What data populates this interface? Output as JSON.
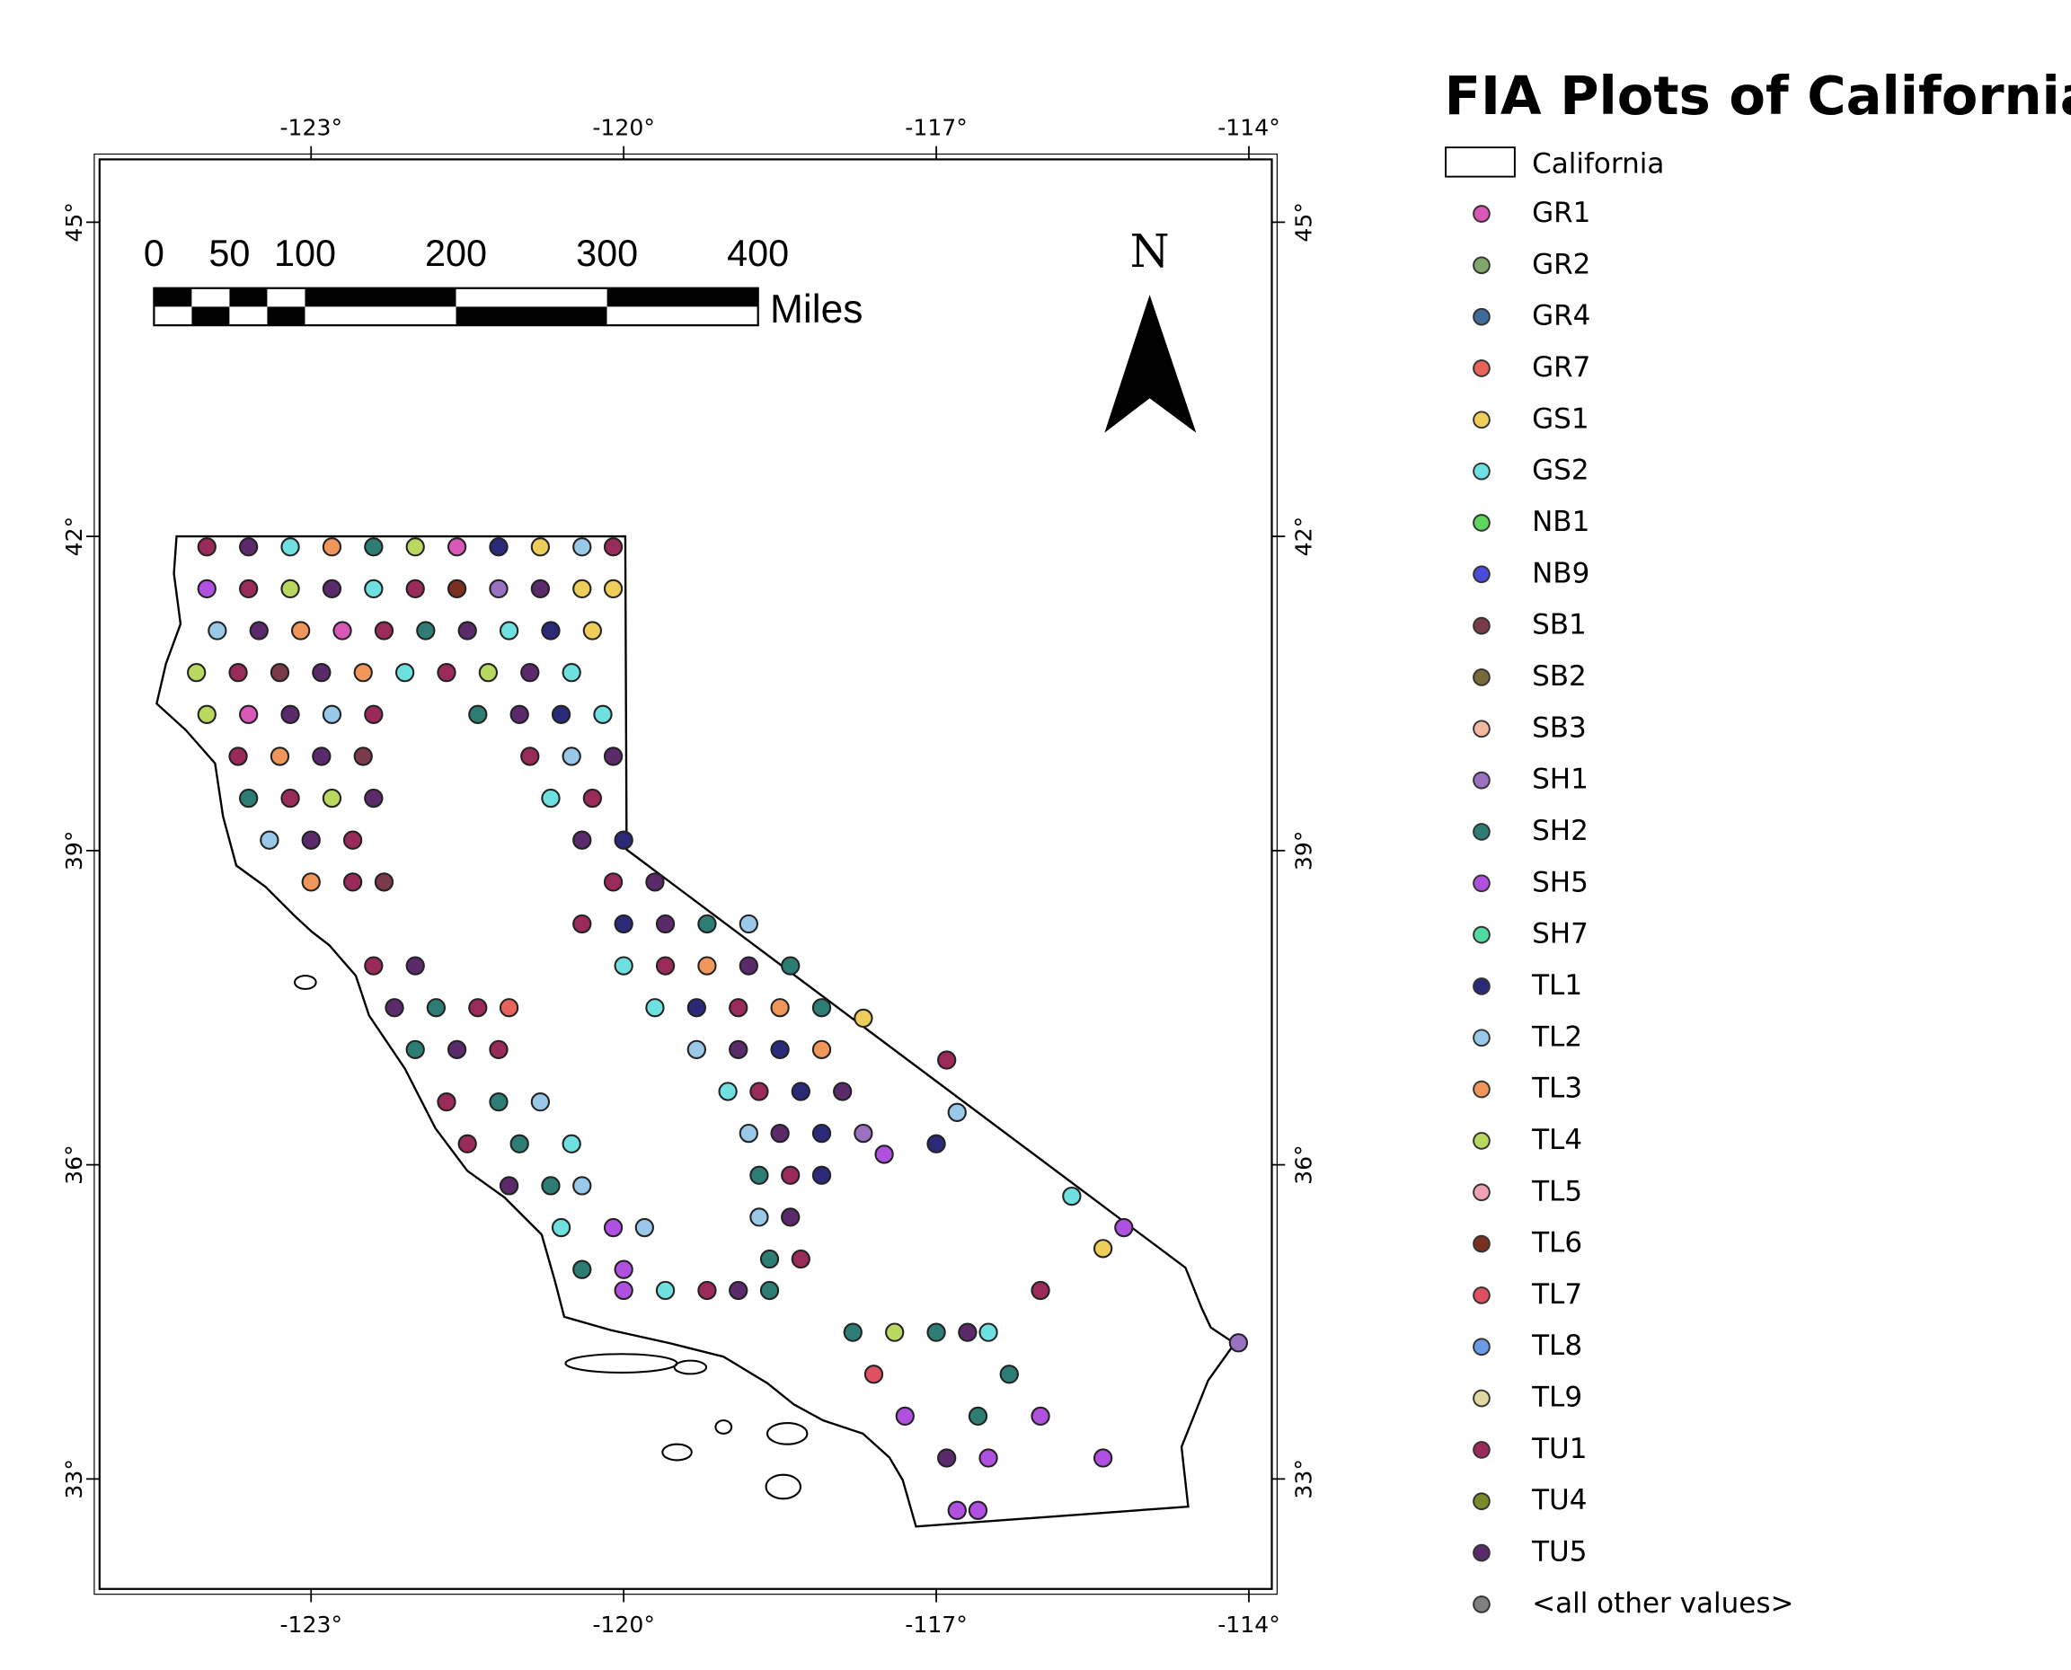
{
  "title": "FIA Plots of California",
  "boundary_label": "California",
  "north_label": "N",
  "scale_bar": {
    "unit": "Miles",
    "ticks": [
      0,
      50,
      100,
      200,
      300,
      400
    ],
    "max": 400
  },
  "xlim": [
    -125.03,
    -113.78
  ],
  "ylim": [
    31.95,
    45.6
  ],
  "xticks": [
    {
      "value": -123,
      "label": "-123°"
    },
    {
      "value": -120,
      "label": "-120°"
    },
    {
      "value": -117,
      "label": "-117°"
    },
    {
      "value": -114,
      "label": "-114°"
    }
  ],
  "yticks": [
    {
      "value": 33,
      "label": "33°"
    },
    {
      "value": 36,
      "label": "36°"
    },
    {
      "value": 39,
      "label": "39°"
    },
    {
      "value": 42,
      "label": "42°"
    },
    {
      "value": 45,
      "label": "45°"
    }
  ],
  "legend": [
    {
      "name": "GR1",
      "color": "#d957b6"
    },
    {
      "name": "GR2",
      "color": "#7fa86a"
    },
    {
      "name": "GR4",
      "color": "#3e6b9a"
    },
    {
      "name": "GR7",
      "color": "#e8645a"
    },
    {
      "name": "GS1",
      "color": "#efcd5a"
    },
    {
      "name": "GS2",
      "color": "#6fe0e0"
    },
    {
      "name": "NB1",
      "color": "#5ed65e"
    },
    {
      "name": "NB9",
      "color": "#4b4bd8"
    },
    {
      "name": "SB1",
      "color": "#7a3a4a"
    },
    {
      "name": "SB2",
      "color": "#7a6a3a"
    },
    {
      "name": "SB3",
      "color": "#f2b9a0"
    },
    {
      "name": "SH1",
      "color": "#9a70c0"
    },
    {
      "name": "SH2",
      "color": "#2e7d74"
    },
    {
      "name": "SH5",
      "color": "#b050e0"
    },
    {
      "name": "SH7",
      "color": "#4fdca0"
    },
    {
      "name": "TL1",
      "color": "#2a2a78"
    },
    {
      "name": "TL2",
      "color": "#9ac8e8"
    },
    {
      "name": "TL3",
      "color": "#f0965a"
    },
    {
      "name": "TL4",
      "color": "#b8d860"
    },
    {
      "name": "TL5",
      "color": "#f0a0b0"
    },
    {
      "name": "TL6",
      "color": "#7a3020"
    },
    {
      "name": "TL7",
      "color": "#e05060"
    },
    {
      "name": "TL8",
      "color": "#6a9ae8"
    },
    {
      "name": "TL9",
      "color": "#e0d8a0"
    },
    {
      "name": "TU1",
      "color": "#9a2a5a"
    },
    {
      "name": "TU4",
      "color": "#7a8a2a"
    },
    {
      "name": "TU5",
      "color": "#5a2a6a"
    },
    {
      "name": "<all other values>",
      "color": "#808080"
    }
  ],
  "plots": [
    [
      "TU1",
      -124.0,
      41.9
    ],
    [
      "TU5",
      -123.6,
      41.9
    ],
    [
      "GS2",
      -123.2,
      41.9
    ],
    [
      "TL3",
      -122.8,
      41.9
    ],
    [
      "SH2",
      -122.4,
      41.9
    ],
    [
      "TL4",
      -122.0,
      41.9
    ],
    [
      "GR1",
      -121.6,
      41.9
    ],
    [
      "TL1",
      -121.2,
      41.9
    ],
    [
      "GS1",
      -120.8,
      41.9
    ],
    [
      "TL2",
      -120.4,
      41.9
    ],
    [
      "TU1",
      -120.1,
      41.9
    ],
    [
      "SH5",
      -124.0,
      41.5
    ],
    [
      "TU1",
      -123.6,
      41.5
    ],
    [
      "TL4",
      -123.2,
      41.5
    ],
    [
      "TU5",
      -122.8,
      41.5
    ],
    [
      "GS2",
      -122.4,
      41.5
    ],
    [
      "TU1",
      -122.0,
      41.5
    ],
    [
      "TL6",
      -121.6,
      41.5
    ],
    [
      "SH1",
      -121.2,
      41.5
    ],
    [
      "TU5",
      -120.8,
      41.5
    ],
    [
      "GS1",
      -120.4,
      41.5
    ],
    [
      "GS1",
      -120.1,
      41.5
    ],
    [
      "TL2",
      -123.9,
      41.1
    ],
    [
      "TU5",
      -123.5,
      41.1
    ],
    [
      "TL3",
      -123.1,
      41.1
    ],
    [
      "GR1",
      -122.7,
      41.1
    ],
    [
      "TU1",
      -122.3,
      41.1
    ],
    [
      "SH2",
      -121.9,
      41.1
    ],
    [
      "TU5",
      -121.5,
      41.1
    ],
    [
      "GS2",
      -121.1,
      41.1
    ],
    [
      "TL1",
      -120.7,
      41.1
    ],
    [
      "GS1",
      -120.3,
      41.1
    ],
    [
      "TL4",
      -124.1,
      40.7
    ],
    [
      "TU1",
      -123.7,
      40.7
    ],
    [
      "SB1",
      -123.3,
      40.7
    ],
    [
      "TU5",
      -122.9,
      40.7
    ],
    [
      "TL3",
      -122.5,
      40.7
    ],
    [
      "GS2",
      -122.1,
      40.7
    ],
    [
      "TU1",
      -121.7,
      40.7
    ],
    [
      "TL4",
      -121.3,
      40.7
    ],
    [
      "TU5",
      -120.9,
      40.7
    ],
    [
      "GS2",
      -120.5,
      40.7
    ],
    [
      "TL4",
      -124.0,
      40.3
    ],
    [
      "GR1",
      -123.6,
      40.3
    ],
    [
      "TU5",
      -123.2,
      40.3
    ],
    [
      "TL2",
      -122.8,
      40.3
    ],
    [
      "TU1",
      -122.4,
      40.3
    ],
    [
      "SH2",
      -121.4,
      40.3
    ],
    [
      "TU5",
      -121.0,
      40.3
    ],
    [
      "TL1",
      -120.6,
      40.3
    ],
    [
      "GS2",
      -120.2,
      40.3
    ],
    [
      "TU1",
      -123.7,
      39.9
    ],
    [
      "TL3",
      -123.3,
      39.9
    ],
    [
      "TU5",
      -122.9,
      39.9
    ],
    [
      "SB1",
      -122.5,
      39.9
    ],
    [
      "TU1",
      -120.9,
      39.9
    ],
    [
      "TL2",
      -120.5,
      39.9
    ],
    [
      "TU5",
      -120.1,
      39.9
    ],
    [
      "SH2",
      -123.6,
      39.5
    ],
    [
      "TU1",
      -123.2,
      39.5
    ],
    [
      "TL4",
      -122.8,
      39.5
    ],
    [
      "TU5",
      -122.4,
      39.5
    ],
    [
      "GS2",
      -120.7,
      39.5
    ],
    [
      "TU1",
      -120.3,
      39.5
    ],
    [
      "TL2",
      -123.4,
      39.1
    ],
    [
      "TU5",
      -123.0,
      39.1
    ],
    [
      "TU1",
      -122.6,
      39.1
    ],
    [
      "TU5",
      -120.4,
      39.1
    ],
    [
      "TL1",
      -120.0,
      39.1
    ],
    [
      "TL3",
      -123.0,
      38.7
    ],
    [
      "TU1",
      -122.6,
      38.7
    ],
    [
      "SB1",
      -122.3,
      38.7
    ],
    [
      "TU1",
      -120.1,
      38.7
    ],
    [
      "TU5",
      -119.7,
      38.7
    ],
    [
      "TU1",
      -120.4,
      38.3
    ],
    [
      "TL1",
      -120.0,
      38.3
    ],
    [
      "TU5",
      -119.6,
      38.3
    ],
    [
      "SH2",
      -119.2,
      38.3
    ],
    [
      "TL2",
      -118.8,
      38.3
    ],
    [
      "GS2",
      -120.0,
      37.9
    ],
    [
      "TU1",
      -119.6,
      37.9
    ],
    [
      "TL3",
      -119.2,
      37.9
    ],
    [
      "TU5",
      -118.8,
      37.9
    ],
    [
      "SH2",
      -118.4,
      37.9
    ],
    [
      "GS2",
      -119.7,
      37.5
    ],
    [
      "TL1",
      -119.3,
      37.5
    ],
    [
      "TU1",
      -118.9,
      37.5
    ],
    [
      "TL3",
      -118.5,
      37.5
    ],
    [
      "SH2",
      -118.1,
      37.5
    ],
    [
      "TL2",
      -119.3,
      37.1
    ],
    [
      "TU5",
      -118.9,
      37.1
    ],
    [
      "TL1",
      -118.5,
      37.1
    ],
    [
      "TL3",
      -118.1,
      37.1
    ],
    [
      "GS2",
      -119.0,
      36.7
    ],
    [
      "TU1",
      -118.7,
      36.7
    ],
    [
      "TL1",
      -118.3,
      36.7
    ],
    [
      "TU5",
      -117.9,
      36.7
    ],
    [
      "TL2",
      -118.8,
      36.3
    ],
    [
      "TU5",
      -118.5,
      36.3
    ],
    [
      "TL1",
      -118.1,
      36.3
    ],
    [
      "SH1",
      -117.7,
      36.3
    ],
    [
      "SH2",
      -118.7,
      35.9
    ],
    [
      "TU1",
      -118.4,
      35.9
    ],
    [
      "TL1",
      -118.1,
      35.9
    ],
    [
      "TL2",
      -118.7,
      35.5
    ],
    [
      "TU5",
      -118.4,
      35.5
    ],
    [
      "SH2",
      -118.6,
      35.1
    ],
    [
      "TU1",
      -118.3,
      35.1
    ],
    [
      "SH5",
      -120.0,
      34.8
    ],
    [
      "GS2",
      -119.6,
      34.8
    ],
    [
      "TU1",
      -119.2,
      34.8
    ],
    [
      "TU5",
      -118.9,
      34.8
    ],
    [
      "SH2",
      -118.6,
      34.8
    ],
    [
      "TU1",
      -122.4,
      37.9
    ],
    [
      "TU5",
      -122.0,
      37.9
    ],
    [
      "TU5",
      -122.2,
      37.5
    ],
    [
      "SH2",
      -121.8,
      37.5
    ],
    [
      "TU1",
      -121.4,
      37.5
    ],
    [
      "GR7",
      -121.1,
      37.5
    ],
    [
      "SH2",
      -122.0,
      37.1
    ],
    [
      "TU5",
      -121.6,
      37.1
    ],
    [
      "TU1",
      -121.2,
      37.1
    ],
    [
      "TU1",
      -121.7,
      36.6
    ],
    [
      "SH2",
      -121.2,
      36.6
    ],
    [
      "TL2",
      -120.8,
      36.6
    ],
    [
      "TU1",
      -121.5,
      36.2
    ],
    [
      "SH2",
      -121.0,
      36.2
    ],
    [
      "GS2",
      -120.5,
      36.2
    ],
    [
      "TU5",
      -121.1,
      35.8
    ],
    [
      "SH2",
      -120.7,
      35.8
    ],
    [
      "TL2",
      -120.4,
      35.8
    ],
    [
      "GS2",
      -120.6,
      35.4
    ],
    [
      "SH5",
      -120.1,
      35.4
    ],
    [
      "TL2",
      -119.8,
      35.4
    ],
    [
      "SH2",
      -120.4,
      35.0
    ],
    [
      "SH5",
      -120.0,
      35.0
    ],
    [
      "SH2",
      -117.8,
      34.4
    ],
    [
      "TL4",
      -117.4,
      34.4
    ],
    [
      "SH2",
      -117.0,
      34.4
    ],
    [
      "TU5",
      -116.7,
      34.4
    ],
    [
      "GS2",
      -116.5,
      34.4
    ],
    [
      "TL7",
      -117.6,
      34.0
    ],
    [
      "SH2",
      -116.3,
      34.0
    ],
    [
      "SH5",
      -117.3,
      33.6
    ],
    [
      "SH2",
      -116.6,
      33.6
    ],
    [
      "SH5",
      -116.0,
      33.6
    ],
    [
      "TU5",
      -116.9,
      33.2
    ],
    [
      "SH5",
      -116.5,
      33.2
    ],
    [
      "SH5",
      -115.4,
      33.2
    ],
    [
      "SH5",
      -116.8,
      32.7
    ],
    [
      "SH5",
      -116.6,
      32.7
    ],
    [
      "GS2",
      -115.7,
      35.7
    ],
    [
      "SH5",
      -115.2,
      35.4
    ],
    [
      "GS1",
      -115.4,
      35.2
    ],
    [
      "TU1",
      -116.0,
      34.8
    ],
    [
      "SH1",
      -114.1,
      34.3
    ],
    [
      "TL1",
      -117.0,
      36.2
    ],
    [
      "TL2",
      -116.8,
      36.5
    ],
    [
      "TU1",
      -116.9,
      37.0
    ],
    [
      "SH5",
      -117.5,
      36.1
    ],
    [
      "GS1",
      -117.7,
      37.4
    ]
  ]
}
